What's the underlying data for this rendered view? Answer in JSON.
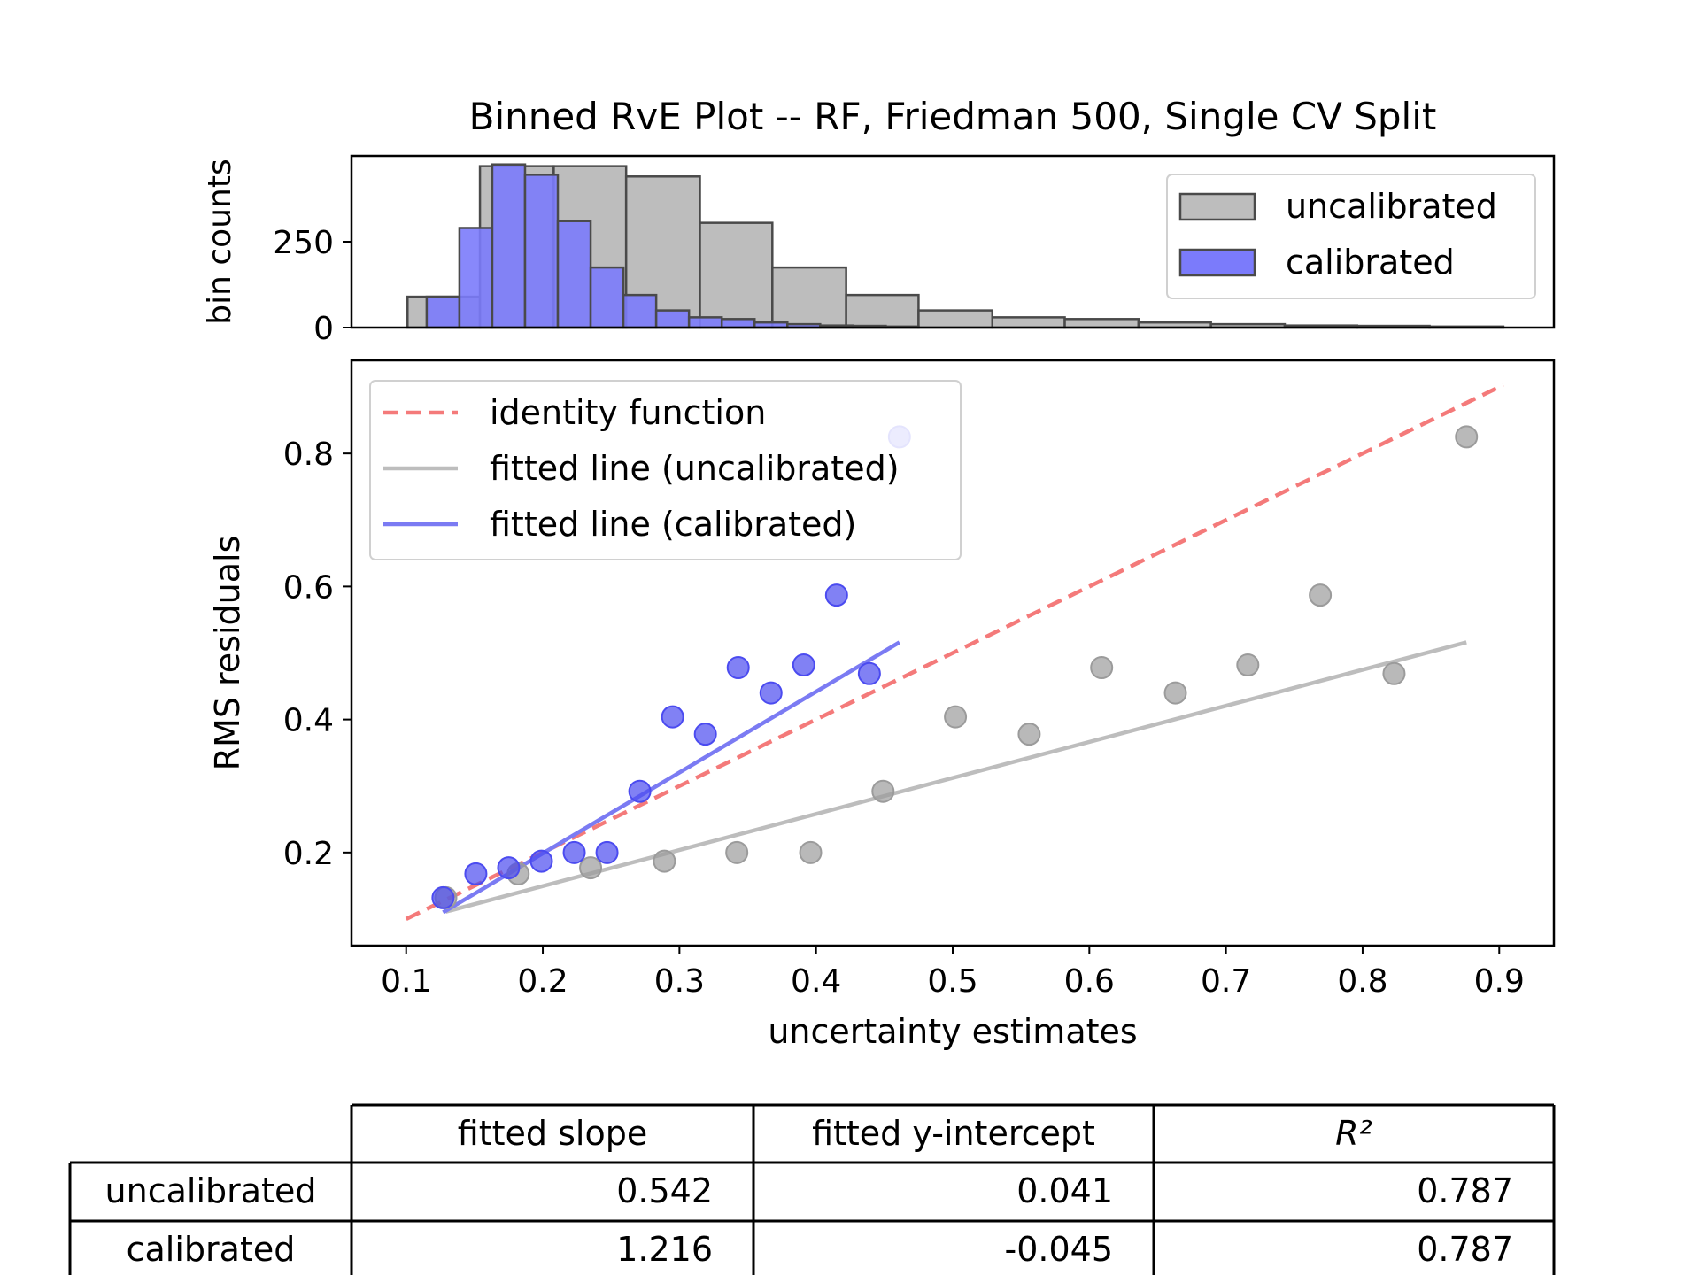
{
  "chart_data": [
    {
      "type": "bar",
      "title": "Binned RvE Plot -- RF, Friedman 500, Single CV Split",
      "ylabel": "bin counts",
      "xlim": [
        0.06,
        0.94
      ],
      "ylim": [
        0,
        500
      ],
      "yticks": [
        0,
        250
      ],
      "legend": {
        "position": "top-right",
        "entries": [
          "uncalibrated",
          "calibrated"
        ]
      },
      "colors": {
        "uncalibrated": "#bdbdbd",
        "calibrated": "#7b7bfb",
        "edge": "#4a4a4a"
      },
      "series": [
        {
          "name": "uncalibrated",
          "bin_edges": [
            0.101,
            0.154,
            0.208,
            0.261,
            0.315,
            0.368,
            0.422,
            0.475,
            0.529,
            0.582,
            0.636,
            0.689,
            0.743,
            0.796,
            0.849,
            0.903
          ],
          "counts": [
            90,
            470,
            470,
            440,
            305,
            175,
            95,
            50,
            30,
            25,
            15,
            10,
            6,
            5,
            3
          ]
        },
        {
          "name": "calibrated",
          "bin_edges": [
            0.115,
            0.139,
            0.163,
            0.187,
            0.211,
            0.235,
            0.259,
            0.283,
            0.307,
            0.331,
            0.355,
            0.379,
            0.403,
            0.427,
            0.451,
            0.475
          ],
          "counts": [
            90,
            290,
            475,
            445,
            310,
            175,
            95,
            50,
            30,
            25,
            15,
            10,
            6,
            5,
            3
          ]
        }
      ]
    },
    {
      "type": "scatter",
      "xlabel": "uncertainty estimates",
      "ylabel": "RMS residuals",
      "xlim": [
        0.06,
        0.94
      ],
      "ylim": [
        0.06,
        0.94
      ],
      "xticks": [
        0.1,
        0.2,
        0.3,
        0.4,
        0.5,
        0.6,
        0.7,
        0.8,
        0.9
      ],
      "yticks": [
        0.2,
        0.4,
        0.6,
        0.8
      ],
      "legend": {
        "position": "top-left",
        "entries": [
          "identity function",
          "fitted line (uncalibrated)",
          "fitted line (calibrated)"
        ]
      },
      "series": [
        {
          "name": "uncalibrated",
          "color": "#9b9b9b",
          "x": [
            0.129,
            0.182,
            0.235,
            0.289,
            0.342,
            0.396,
            0.449,
            0.502,
            0.556,
            0.609,
            0.663,
            0.716,
            0.769,
            0.823,
            0.876
          ],
          "y": [
            0.132,
            0.168,
            0.177,
            0.187,
            0.2,
            0.2,
            0.292,
            0.404,
            0.378,
            0.478,
            0.44,
            0.482,
            0.587,
            0.469,
            0.825
          ]
        },
        {
          "name": "calibrated",
          "color": "#4b4bf0",
          "x": [
            0.127,
            0.151,
            0.175,
            0.199,
            0.223,
            0.247,
            0.271,
            0.295,
            0.319,
            0.343,
            0.367,
            0.391,
            0.415,
            0.439,
            0.461
          ],
          "y": [
            0.132,
            0.168,
            0.177,
            0.187,
            0.2,
            0.2,
            0.292,
            0.404,
            0.378,
            0.478,
            0.44,
            0.482,
            0.587,
            0.469,
            0.825
          ]
        }
      ],
      "lines": [
        {
          "name": "identity function",
          "style": "dashed",
          "color": "#f47a7a",
          "x": [
            0.1,
            0.903
          ],
          "y": [
            0.1,
            0.903
          ]
        },
        {
          "name": "fitted line (uncalibrated)",
          "style": "solid",
          "color": "#bdbdbd",
          "x": [
            0.129,
            0.876
          ],
          "y": [
            0.111,
            0.516
          ]
        },
        {
          "name": "fitted line (calibrated)",
          "style": "solid",
          "color": "#7b7bf3",
          "x": [
            0.127,
            0.461
          ],
          "y": [
            0.11,
            0.516
          ]
        }
      ]
    },
    {
      "type": "table",
      "columns": [
        "fitted slope",
        "fitted y-intercept",
        "R²"
      ],
      "rows": [
        {
          "label": "uncalibrated",
          "values": [
            "0.542",
            "0.041",
            "0.787"
          ]
        },
        {
          "label": "calibrated",
          "values": [
            "1.216",
            "-0.045",
            "0.787"
          ]
        }
      ]
    }
  ]
}
